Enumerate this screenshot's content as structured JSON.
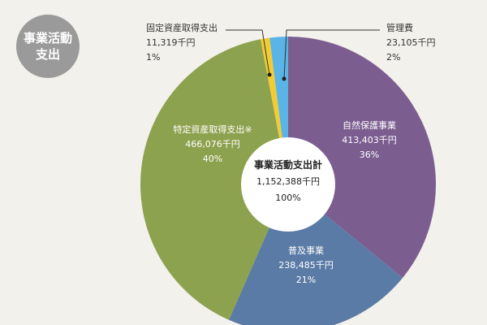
{
  "badge": {
    "line1": "事業活動",
    "line2": "支出"
  },
  "chart_data": {
    "type": "pie",
    "center_label": [
      "事業活動支出計",
      "1,152,388千円",
      "100%"
    ],
    "slices": [
      {
        "label": "自然保護事業",
        "value": 413403,
        "value_text": "413,403千円",
        "percent_text": "36%",
        "color": "#7b5d90"
      },
      {
        "label": "普及事業",
        "value": 238485,
        "value_text": "238,485千円",
        "percent_text": "21%",
        "color": "#5a7ba6"
      },
      {
        "label": "特定資産取得支出※",
        "value": 466076,
        "value_text": "466,076千円",
        "percent_text": "40%",
        "color": "#8da24e"
      },
      {
        "label": "固定資産取得支出",
        "value": 11319,
        "value_text": "11,319千円",
        "percent_text": "1%",
        "color": "#f2cc34"
      },
      {
        "label": "管理費",
        "value": 23105,
        "value_text": "23,105千円",
        "percent_text": "2%",
        "color": "#5ab4e6"
      }
    ]
  }
}
